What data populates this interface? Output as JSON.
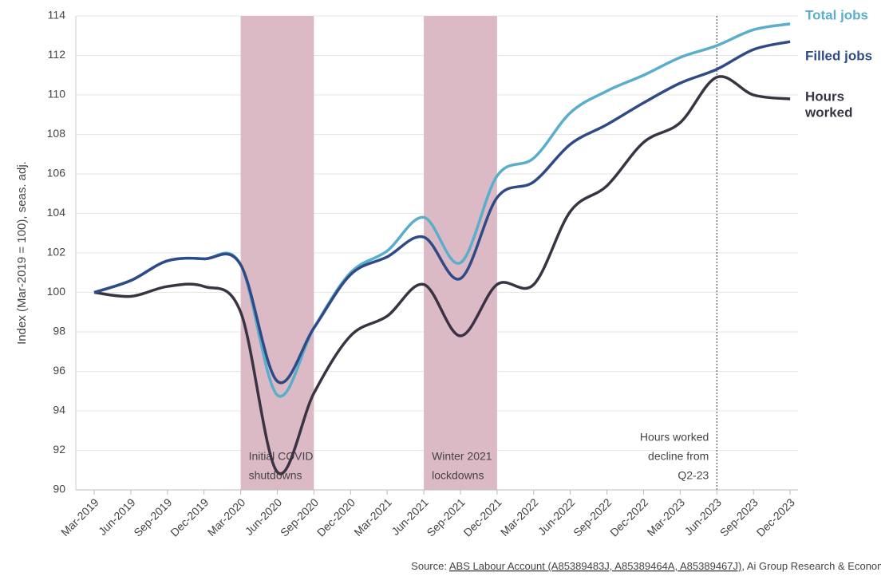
{
  "chart_data": {
    "type": "line",
    "y_label": "Index (Mar-2019 = 100), seas. adj.",
    "categories": [
      "Mar-2019",
      "Jun-2019",
      "Sep-2019",
      "Dec-2019",
      "Mar-2020",
      "Jun-2020",
      "Sep-2020",
      "Dec-2020",
      "Mar-2021",
      "Jun-2021",
      "Sep-2021",
      "Dec-2021",
      "Mar-2022",
      "Jun-2022",
      "Sep-2022",
      "Dec-2022",
      "Mar-2023",
      "Jun-2023",
      "Sep-2023",
      "Dec-2023"
    ],
    "series": [
      {
        "name": "Total jobs",
        "color": "#5aaecb",
        "values": [
          100,
          100.6,
          101.6,
          101.7,
          101.4,
          94.8,
          98.2,
          101.0,
          102.1,
          103.8,
          101.5,
          105.9,
          106.8,
          109.1,
          110.2,
          111.0,
          111.9,
          112.5,
          113.3,
          113.6
        ]
      },
      {
        "name": "Filled jobs",
        "color": "#2e4a87",
        "values": [
          100,
          100.6,
          101.6,
          101.7,
          101.4,
          95.5,
          98.2,
          100.9,
          101.8,
          102.8,
          100.7,
          104.8,
          105.6,
          107.5,
          108.5,
          109.6,
          110.6,
          111.3,
          112.3,
          112.7
        ]
      },
      {
        "name": [
          "Hours",
          "worked"
        ],
        "color": "#3a3344",
        "values": [
          100,
          99.8,
          100.3,
          100.3,
          99.0,
          90.9,
          94.9,
          97.8,
          98.8,
          100.4,
          97.8,
          100.4,
          100.4,
          104.1,
          105.4,
          107.6,
          108.6,
          110.9,
          110.0,
          109.8
        ]
      }
    ],
    "shaded_regions": [
      {
        "start": "Mar-2020",
        "end": "Sep-2020",
        "label": [
          "Initial COVID",
          "shutdowns"
        ]
      },
      {
        "start": "Jun-2021",
        "end": "Dec-2021",
        "label": [
          "Winter 2021",
          "lockdowns"
        ]
      }
    ],
    "shade_color": "#dcbac5",
    "vline": {
      "at": "Jun-2023",
      "label": [
        "Hours worked",
        "decline from",
        "Q2-23"
      ]
    },
    "ylim": [
      90,
      114
    ],
    "yticks": [
      90,
      92,
      94,
      96,
      98,
      100,
      102,
      104,
      106,
      108,
      110,
      112,
      114
    ],
    "grid": true,
    "source": [
      "Source: ",
      "ABS Labour Account (A85389483J, A85389464A, A85389467J)",
      ", Ai Group Research & Econom"
    ]
  }
}
